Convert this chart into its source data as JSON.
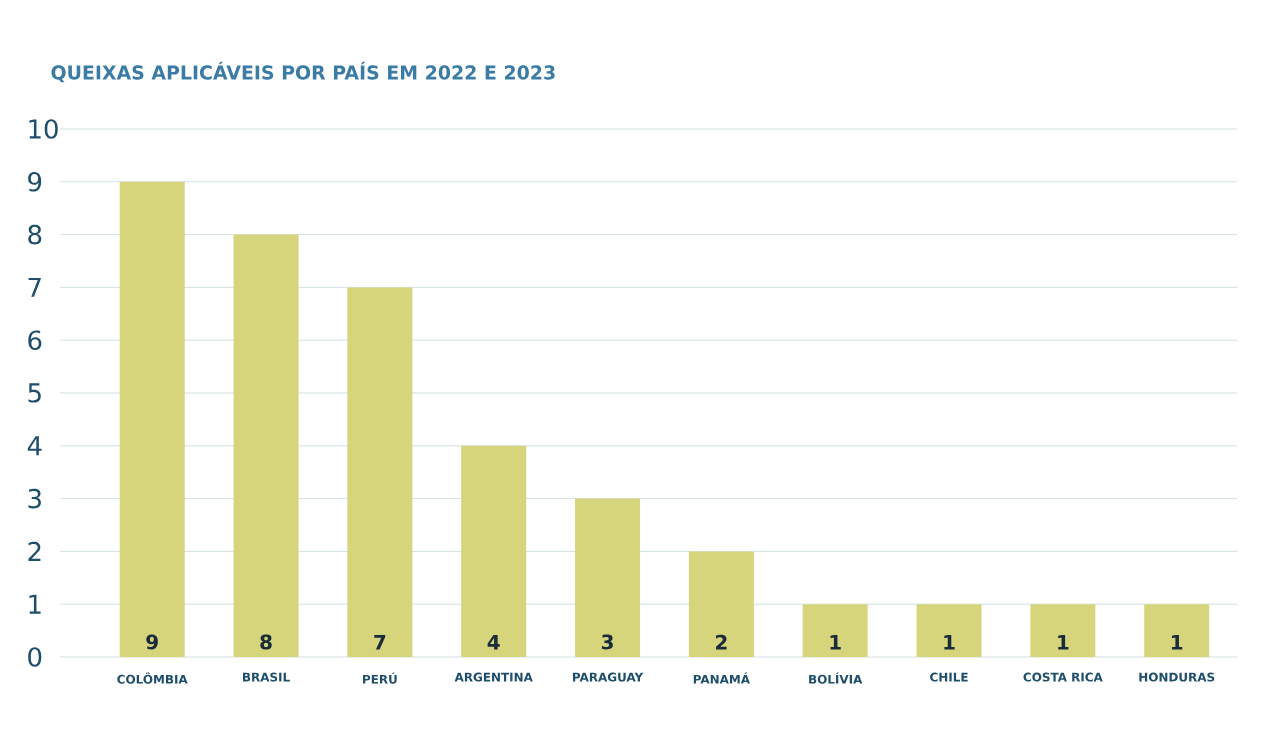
{
  "chart_data": {
    "type": "bar",
    "title": "QUEIXAS APLICÁVEIS POR PAÍS EM 2022 E 2023",
    "categories": [
      "COLÔMBIA",
      "BRASIL",
      "PERÚ",
      "ARGENTINA",
      "PARAGUAY",
      "PANAMÁ",
      "BOLÍVIA",
      "CHILE",
      "COSTA RICA",
      "HONDURAS"
    ],
    "values": [
      9,
      8,
      7,
      4,
      3,
      2,
      1,
      1,
      1,
      1
    ],
    "color": "#d6d57c",
    "ylim": [
      0,
      10
    ],
    "yticks": [
      0,
      1,
      2,
      3,
      4,
      5,
      6,
      7,
      8,
      9,
      10
    ],
    "grid": "y",
    "data_labels": true
  }
}
